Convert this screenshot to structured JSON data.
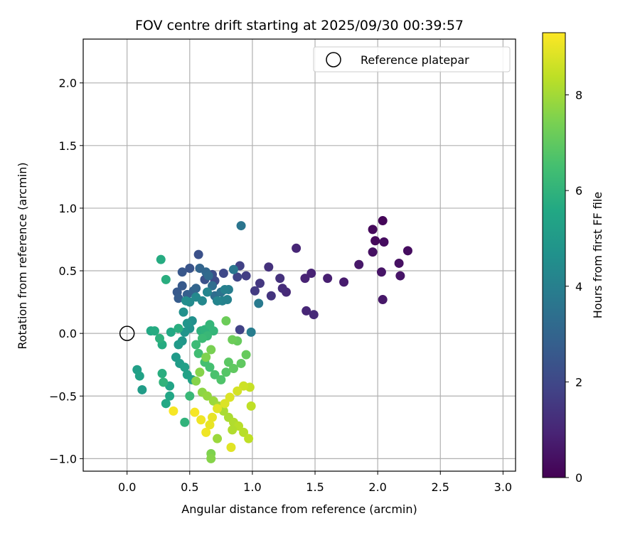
{
  "chart_data": {
    "type": "scatter",
    "title": "FOV centre drift starting at 2025/09/30 00:39:57",
    "xlabel": "Angular distance from reference (arcmin)",
    "ylabel": "Rotation from reference (arcmin)",
    "xlim": [
      -0.35,
      3.1
    ],
    "ylim": [
      -1.1,
      2.35
    ],
    "xticks": [
      0.0,
      0.5,
      1.0,
      1.5,
      2.0,
      2.5,
      3.0
    ],
    "xtick_labels": [
      "0.0",
      "0.5",
      "1.0",
      "1.5",
      "2.0",
      "2.5",
      "3.0"
    ],
    "yticks": [
      -1.0,
      -0.5,
      0.0,
      0.5,
      1.0,
      1.5,
      2.0
    ],
    "ytick_labels": [
      "−1.0",
      "−0.5",
      "0.0",
      "0.5",
      "1.0",
      "1.5",
      "2.0"
    ],
    "grid": true,
    "legend": {
      "position": "top-right",
      "label": "Reference platepar",
      "marker": "open-circle"
    },
    "reference_point": {
      "x": 0.0,
      "y": 0.0
    },
    "colorbar": {
      "label": "Hours from first FF file",
      "min": 0,
      "max": 9.3,
      "ticks": [
        0,
        2,
        4,
        6,
        8
      ],
      "tick_labels": [
        "0",
        "2",
        "4",
        "6",
        "8"
      ],
      "colormap": "viridis"
    },
    "points": [
      [
        2.04,
        0.9,
        0.1
      ],
      [
        1.96,
        0.83,
        0.2
      ],
      [
        1.98,
        0.74,
        0.2
      ],
      [
        2.05,
        0.73,
        0.3
      ],
      [
        1.96,
        0.65,
        0.4
      ],
      [
        2.24,
        0.66,
        0.3
      ],
      [
        2.17,
        0.56,
        0.4
      ],
      [
        2.03,
        0.49,
        0.5
      ],
      [
        2.18,
        0.46,
        0.5
      ],
      [
        2.04,
        0.27,
        0.6
      ],
      [
        1.85,
        0.55,
        0.6
      ],
      [
        1.73,
        0.41,
        0.7
      ],
      [
        1.6,
        0.44,
        0.8
      ],
      [
        1.47,
        0.48,
        0.9
      ],
      [
        1.42,
        0.44,
        0.9
      ],
      [
        1.35,
        0.68,
        1.0
      ],
      [
        1.43,
        0.18,
        1.0
      ],
      [
        1.49,
        0.15,
        1.1
      ],
      [
        1.27,
        0.33,
        1.1
      ],
      [
        1.24,
        0.36,
        1.2
      ],
      [
        1.22,
        0.44,
        1.3
      ],
      [
        1.13,
        0.53,
        1.3
      ],
      [
        1.15,
        0.3,
        1.4
      ],
      [
        1.06,
        0.4,
        1.5
      ],
      [
        1.02,
        0.34,
        1.6
      ],
      [
        0.95,
        0.46,
        1.7
      ],
      [
        0.9,
        0.54,
        1.8
      ],
      [
        0.9,
        0.03,
        1.8
      ],
      [
        0.88,
        0.45,
        1.9
      ],
      [
        0.77,
        0.48,
        2.0
      ],
      [
        0.7,
        0.42,
        2.1
      ],
      [
        0.68,
        0.47,
        2.2
      ],
      [
        0.62,
        0.43,
        2.3
      ],
      [
        0.57,
        0.63,
        2.3
      ],
      [
        0.5,
        0.52,
        2.4
      ],
      [
        0.44,
        0.49,
        2.5
      ],
      [
        0.44,
        0.38,
        2.6
      ],
      [
        0.4,
        0.33,
        2.6
      ],
      [
        0.41,
        0.28,
        2.7
      ],
      [
        0.48,
        0.31,
        2.8
      ],
      [
        0.53,
        0.34,
        2.9
      ],
      [
        0.55,
        0.36,
        3.0
      ],
      [
        0.58,
        0.52,
        3.0
      ],
      [
        0.63,
        0.49,
        3.1
      ],
      [
        0.65,
        0.46,
        3.2
      ],
      [
        0.68,
        0.38,
        3.3
      ],
      [
        0.7,
        0.3,
        3.3
      ],
      [
        0.72,
        0.26,
        3.4
      ],
      [
        0.75,
        0.33,
        3.5
      ],
      [
        0.91,
        0.86,
        3.6
      ],
      [
        0.85,
        0.51,
        3.7
      ],
      [
        1.05,
        0.24,
        3.8
      ],
      [
        0.99,
        0.01,
        3.9
      ],
      [
        0.81,
        0.35,
        3.9
      ],
      [
        0.78,
        0.35,
        4.0
      ],
      [
        0.8,
        0.27,
        4.1
      ],
      [
        0.76,
        0.26,
        4.1
      ],
      [
        0.72,
        0.26,
        4.2
      ],
      [
        0.64,
        0.33,
        4.2
      ],
      [
        0.6,
        0.26,
        4.3
      ],
      [
        0.55,
        0.29,
        4.3
      ],
      [
        0.5,
        0.25,
        4.4
      ],
      [
        0.47,
        0.26,
        4.5
      ],
      [
        0.45,
        0.17,
        4.6
      ],
      [
        0.52,
        0.1,
        4.6
      ],
      [
        0.5,
        0.04,
        4.7
      ],
      [
        0.48,
        0.08,
        4.8
      ],
      [
        0.46,
        0.01,
        4.8
      ],
      [
        0.44,
        -0.06,
        4.9
      ],
      [
        0.41,
        -0.09,
        5.0
      ],
      [
        0.39,
        -0.19,
        5.0
      ],
      [
        0.42,
        -0.24,
        5.1
      ],
      [
        0.46,
        -0.27,
        5.2
      ],
      [
        0.48,
        -0.33,
        5.3
      ],
      [
        0.52,
        -0.37,
        5.3
      ],
      [
        0.34,
        -0.42,
        5.4
      ],
      [
        0.34,
        -0.5,
        5.5
      ],
      [
        0.31,
        -0.56,
        5.6
      ],
      [
        0.35,
        0.01,
        5.6
      ],
      [
        0.28,
        -0.09,
        5.7
      ],
      [
        0.27,
        0.59,
        5.7
      ],
      [
        0.31,
        0.43,
        5.8
      ],
      [
        0.41,
        0.04,
        5.8
      ],
      [
        0.59,
        0.02,
        5.9
      ],
      [
        0.62,
        0.03,
        6.0
      ],
      [
        0.66,
        0.07,
        6.1
      ],
      [
        0.69,
        0.02,
        6.1
      ],
      [
        0.64,
        -0.02,
        6.2
      ],
      [
        0.6,
        -0.04,
        6.3
      ],
      [
        0.55,
        -0.09,
        6.3
      ],
      [
        0.57,
        -0.16,
        6.4
      ],
      [
        0.62,
        -0.23,
        6.5
      ],
      [
        0.66,
        -0.27,
        6.5
      ],
      [
        0.7,
        -0.33,
        6.6
      ],
      [
        0.75,
        -0.37,
        6.7
      ],
      [
        0.79,
        -0.31,
        6.8
      ],
      [
        0.81,
        -0.23,
        6.9
      ],
      [
        0.85,
        -0.28,
        7.0
      ],
      [
        0.91,
        -0.24,
        7.0
      ],
      [
        0.95,
        -0.17,
        7.1
      ],
      [
        0.88,
        -0.06,
        7.1
      ],
      [
        0.84,
        -0.05,
        7.2
      ],
      [
        0.79,
        0.1,
        7.2
      ],
      [
        0.67,
        -0.13,
        7.4
      ],
      [
        0.63,
        -0.19,
        7.5
      ],
      [
        0.58,
        -0.31,
        7.6
      ],
      [
        0.55,
        -0.38,
        7.6
      ],
      [
        0.6,
        -0.47,
        7.7
      ],
      [
        0.64,
        -0.5,
        7.8
      ],
      [
        0.69,
        -0.54,
        7.9
      ],
      [
        0.73,
        -0.58,
        8.0
      ],
      [
        0.77,
        -0.62,
        8.1
      ],
      [
        0.81,
        -0.67,
        8.1
      ],
      [
        0.85,
        -0.71,
        8.2
      ],
      [
        0.89,
        -0.74,
        8.3
      ],
      [
        0.93,
        -0.79,
        8.3
      ],
      [
        0.97,
        -0.84,
        8.4
      ],
      [
        0.99,
        -0.58,
        8.4
      ],
      [
        0.98,
        -0.43,
        8.5
      ],
      [
        0.93,
        -0.42,
        8.6
      ],
      [
        0.88,
        -0.46,
        8.7
      ],
      [
        0.82,
        -0.51,
        8.8
      ],
      [
        0.78,
        -0.56,
        8.8
      ],
      [
        0.72,
        -0.6,
        8.9
      ],
      [
        0.68,
        -0.67,
        9.0
      ],
      [
        0.66,
        -0.73,
        9.0
      ],
      [
        0.63,
        -0.79,
        9.1
      ],
      [
        0.59,
        -0.69,
        9.1
      ],
      [
        0.54,
        -0.63,
        9.2
      ],
      [
        0.37,
        -0.62,
        9.2
      ],
      [
        0.67,
        -0.96,
        7.5
      ],
      [
        0.67,
        -1.0,
        7.6
      ],
      [
        0.72,
        -0.84,
        7.9
      ],
      [
        0.83,
        -0.91,
        8.9
      ],
      [
        0.84,
        -0.77,
        8.2
      ],
      [
        0.12,
        -0.45,
        5.1
      ],
      [
        0.08,
        -0.29,
        5.2
      ],
      [
        0.1,
        -0.34,
        5.3
      ],
      [
        0.19,
        0.02,
        5.6
      ],
      [
        0.22,
        0.02,
        5.7
      ],
      [
        0.26,
        -0.04,
        5.9
      ],
      [
        0.28,
        -0.32,
        5.8
      ],
      [
        0.29,
        -0.39,
        6.0
      ],
      [
        0.46,
        -0.71,
        6.0
      ],
      [
        0.5,
        -0.5,
        6.2
      ]
    ]
  }
}
